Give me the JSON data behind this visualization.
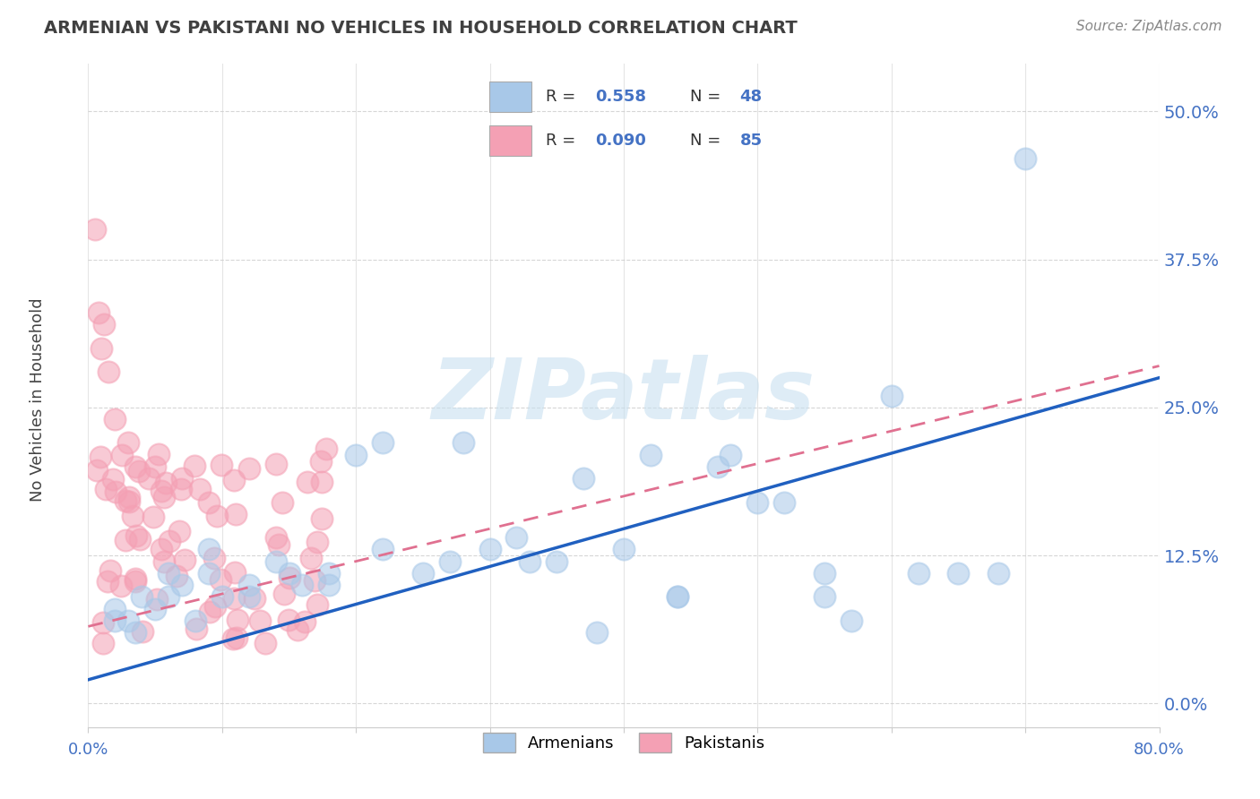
{
  "title": "ARMENIAN VS PAKISTANI NO VEHICLES IN HOUSEHOLD CORRELATION CHART",
  "source": "Source: ZipAtlas.com",
  "ylabel": "No Vehicles in Household",
  "ytick_labels": [
    "0.0%",
    "12.5%",
    "25.0%",
    "37.5%",
    "50.0%"
  ],
  "ytick_values": [
    0.0,
    12.5,
    25.0,
    37.5,
    50.0
  ],
  "xlim": [
    0.0,
    80.0
  ],
  "ylim": [
    -2.0,
    54.0
  ],
  "armenian_color": "#a8c8e8",
  "pakistani_color": "#f4a0b4",
  "armenian_line_color": "#2060c0",
  "pakistani_line_color": "#e07090",
  "armenian_line_x": [
    0,
    80
  ],
  "armenian_line_y": [
    2.0,
    27.5
  ],
  "pakistani_line_x": [
    0,
    80
  ],
  "pakistani_line_y": [
    6.5,
    28.5
  ],
  "armenian_x": [
    2.0,
    3.5,
    5.0,
    6.0,
    7.0,
    8.0,
    9.0,
    10.0,
    12.0,
    14.0,
    16.0,
    18.0,
    20.0,
    22.0,
    25.0,
    28.0,
    30.0,
    32.0,
    35.0,
    37.0,
    40.0,
    42.0,
    44.0,
    47.0,
    50.0,
    52.0,
    55.0,
    57.0,
    60.0,
    62.0,
    65.0,
    68.0,
    70.0,
    55.0,
    48.0,
    44.0,
    38.0,
    33.0,
    27.0,
    22.0,
    18.0,
    15.0,
    12.0,
    9.0,
    6.0,
    4.0,
    3.0,
    2.0
  ],
  "armenian_y": [
    7.0,
    6.0,
    8.0,
    9.0,
    10.0,
    7.0,
    11.0,
    9.0,
    10.0,
    12.0,
    10.0,
    11.0,
    21.0,
    22.0,
    11.0,
    22.0,
    13.0,
    14.0,
    12.0,
    19.0,
    13.0,
    21.0,
    9.0,
    20.0,
    17.0,
    17.0,
    11.0,
    7.0,
    26.0,
    11.0,
    11.0,
    11.0,
    46.0,
    9.0,
    21.0,
    9.0,
    6.0,
    12.0,
    12.0,
    13.0,
    10.0,
    11.0,
    9.0,
    13.0,
    11.0,
    9.0,
    7.0,
    8.0
  ],
  "pak_dense_seed": 42,
  "pak_dense_n": 70,
  "pak_dense_x_min": 0.3,
  "pak_dense_x_max": 18.0,
  "pak_dense_y_min": 5.0,
  "pak_dense_y_max": 22.0,
  "pak_outlier_x": [
    0.5,
    1.0,
    1.5,
    2.0,
    3.0,
    5.0,
    7.0,
    9.0,
    11.0,
    14.0,
    0.8,
    1.2,
    2.5,
    3.5,
    4.5
  ],
  "pak_outlier_y": [
    40.0,
    30.0,
    28.0,
    24.0,
    22.0,
    20.0,
    19.0,
    17.0,
    16.0,
    14.0,
    33.0,
    32.0,
    21.0,
    20.0,
    19.0
  ]
}
